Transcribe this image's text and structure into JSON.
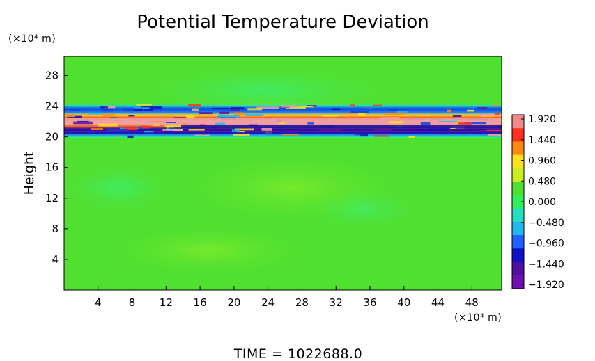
{
  "chart_data": {
    "type": "heatmap",
    "title": "Potential Temperature Deviation",
    "ylabel": "Height",
    "xunit": "(×10⁴ m)",
    "yunit": "(×10⁴ m)",
    "xlim": [
      0,
      51.5
    ],
    "ylim": [
      0,
      30.5
    ],
    "xticks": [
      4,
      8,
      12,
      16,
      20,
      24,
      28,
      32,
      36,
      40,
      44,
      48
    ],
    "yticks": [
      4,
      8,
      12,
      16,
      20,
      24,
      28
    ],
    "colorbar": {
      "levels": [
        1.92,
        1.44,
        0.96,
        0.48,
        0.0,
        -0.48,
        -0.96,
        -1.44,
        -1.92
      ],
      "labels": [
        "1.920",
        "1.440",
        "0.960",
        "0.480",
        "0.000",
        "−0.480",
        "−0.960",
        "−1.440",
        "−1.920"
      ],
      "colors_top_to_bottom": [
        "#f08a8a",
        "#ff3020",
        "#ff8a10",
        "#ffe020",
        "#c8f020",
        "#50e030",
        "#30f060",
        "#20e0c0",
        "#20b8f0",
        "#2060ff",
        "#1010c8",
        "#5010a0",
        "#7010b0"
      ]
    },
    "background_value": 0.2,
    "features": [
      {
        "name": "alternating band",
        "y_range": [
          19.5,
          23.5
        ],
        "min": -1.92,
        "max": 1.92
      },
      {
        "name": "warm patch above band",
        "y_range": [
          23,
          24.5
        ],
        "approx_value": 0.96
      }
    ],
    "grid": false,
    "legend_placement": "right"
  },
  "footer": {
    "time_text": "TIME  =  1022688.0"
  }
}
